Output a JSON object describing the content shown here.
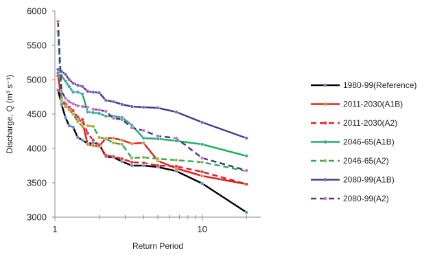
{
  "chart_data": {
    "type": "line",
    "xlabel": "Return Period",
    "ylabel": "Discharge, Q (m³ s⁻¹)",
    "x_scale": "log",
    "xlim": [
      1,
      25
    ],
    "ylim": [
      3000,
      6000
    ],
    "xticks": [
      1,
      10
    ],
    "yticks": [
      3000,
      3500,
      4000,
      4500,
      5000,
      5500,
      6000
    ],
    "legend_position": "right",
    "grid": false,
    "series": [
      {
        "name": "1980-99(Reference)",
        "color": "#000000",
        "dash": "solid",
        "marker_color": "#5b8fd6",
        "x": [
          1.05,
          1.11,
          1.18,
          1.25,
          1.33,
          1.43,
          1.54,
          1.67,
          1.82,
          2.0,
          2.22,
          2.5,
          2.86,
          3.33,
          4.0,
          5.0,
          6.67,
          10.0,
          20.0
        ],
        "y": [
          4850,
          4640,
          4450,
          4330,
          4310,
          4160,
          4120,
          4070,
          4080,
          4060,
          3880,
          3870,
          3810,
          3750,
          3750,
          3730,
          3670,
          3490,
          3070
        ]
      },
      {
        "name": "2011-2030(A1B)",
        "color": "#e02020",
        "dash": "solid",
        "marker_color": "#b8a040",
        "x": [
          1.05,
          1.11,
          1.18,
          1.25,
          1.33,
          1.43,
          1.54,
          1.67,
          1.82,
          2.0,
          2.22,
          2.5,
          2.86,
          3.33,
          4.0,
          5.0,
          6.67,
          10.0,
          20.0
        ],
        "y": [
          5080,
          4690,
          4630,
          4570,
          4530,
          4440,
          4380,
          4060,
          4040,
          4030,
          4150,
          4150,
          4120,
          4070,
          4080,
          3820,
          3710,
          3600,
          3480
        ]
      },
      {
        "name": "2011-2030(A2)",
        "color": "#e02020",
        "dash": "dash",
        "marker_color": "#e04040",
        "x": [
          1.05,
          1.11,
          1.18,
          1.25,
          1.33,
          1.43,
          1.54,
          1.67,
          1.82,
          2.0,
          2.22,
          2.5,
          2.86,
          3.33,
          4.0,
          5.0,
          6.67,
          10.0,
          20.0
        ],
        "y": [
          5060,
          4730,
          4650,
          4600,
          4550,
          4460,
          4420,
          4220,
          4120,
          4050,
          3900,
          3880,
          3850,
          3800,
          3790,
          3750,
          3740,
          3660,
          3480
        ]
      },
      {
        "name": "2046-65(A1B)",
        "color": "#20b060",
        "dash": "solid",
        "marker_color": "#40a0c0",
        "x": [
          1.05,
          1.11,
          1.18,
          1.25,
          1.33,
          1.43,
          1.54,
          1.67,
          1.82,
          2.0,
          2.22,
          2.5,
          2.86,
          3.33,
          4.0,
          5.0,
          6.67,
          10.0,
          20.0
        ],
        "y": [
          5100,
          5060,
          4980,
          4900,
          4820,
          4820,
          4790,
          4530,
          4520,
          4510,
          4470,
          4470,
          4450,
          4340,
          4150,
          4140,
          4110,
          4060,
          3890
        ]
      },
      {
        "name": "2046-65(A2)",
        "color": "#20b060",
        "dash": "dash",
        "marker_color": "#d0a030",
        "x": [
          1.05,
          1.11,
          1.18,
          1.25,
          1.33,
          1.43,
          1.54,
          1.67,
          1.82,
          2.0,
          2.22,
          2.5,
          2.86,
          3.33,
          4.0,
          5.0,
          6.67,
          10.0,
          20.0
        ],
        "y": [
          5700,
          4700,
          4610,
          4560,
          4500,
          4390,
          4320,
          4330,
          4320,
          4160,
          4140,
          4080,
          4060,
          3860,
          3870,
          3850,
          3830,
          3800,
          3670
        ]
      },
      {
        "name": "2080-99(A1B)",
        "color": "#4a3a80",
        "dash": "solid",
        "marker_color": "#8060c8",
        "x": [
          1.05,
          1.11,
          1.18,
          1.25,
          1.33,
          1.43,
          1.54,
          1.67,
          1.82,
          2.0,
          2.22,
          2.5,
          2.86,
          3.33,
          4.0,
          5.0,
          6.67,
          10.0,
          20.0
        ],
        "y": [
          5150,
          5120,
          5080,
          5000,
          4950,
          4920,
          4900,
          4830,
          4820,
          4810,
          4700,
          4680,
          4640,
          4610,
          4600,
          4590,
          4530,
          4380,
          4150
        ]
      },
      {
        "name": "2080-99(A2)",
        "color": "#4a3a80",
        "dash": "dash",
        "marker_color": "#d070c0",
        "x": [
          1.05,
          1.11,
          1.18,
          1.25,
          1.33,
          1.43,
          1.54,
          1.67,
          1.82,
          2.0,
          2.22,
          2.5,
          2.86,
          3.33,
          4.0,
          5.0,
          6.67,
          10.0,
          20.0
        ],
        "y": [
          5850,
          4830,
          4730,
          4680,
          4650,
          4620,
          4610,
          4600,
          4570,
          4560,
          4540,
          4440,
          4420,
          4300,
          4260,
          4180,
          4150,
          3860,
          3680
        ]
      }
    ]
  }
}
